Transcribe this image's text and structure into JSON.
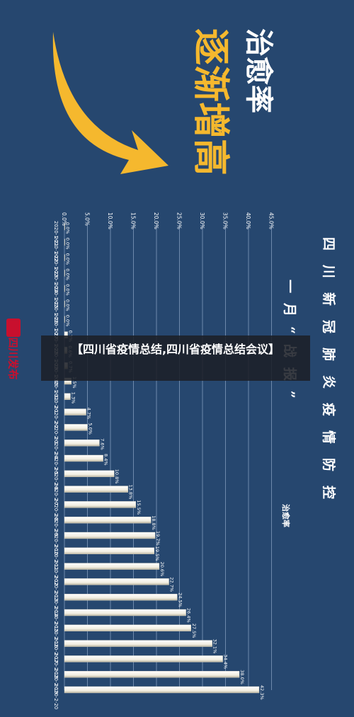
{
  "headline": "【四川省疫情总结,四川省疫情总结会议】",
  "brand": {
    "text": "四川发布",
    "color": "#c8102e"
  },
  "banner": {
    "line1": "治愈率",
    "line2": "逐渐增高"
  },
  "colors": {
    "background": "#26476f",
    "bar": "#f4f1e4",
    "bar_shade": "#bdb7a3",
    "arrow": "#f5b82e",
    "grid": "#8fa6c6"
  },
  "chart_data": {
    "type": "bar",
    "orientation": "horizontal",
    "title": "四川新冠肺炎疫情防控",
    "subtitle": "一月“战报”",
    "legend": "治愈率",
    "categories": [
      "2020-1-21",
      "2020-1-22",
      "2020-1-23",
      "2020-1-24",
      "2020-1-25",
      "2020-1-26",
      "2020-1-27",
      "2020-1-28",
      "2020-1-29",
      "2020-1-30",
      "2020-1-31",
      "2020-2-1",
      "2020-2-2",
      "2020-2-3",
      "2020-2-4",
      "2020-2-5",
      "2020-2-6",
      "2020-2-7",
      "2020-2-8",
      "2020-2-9",
      "2020-2-10",
      "2020-2-11",
      "2020-2-12",
      "2020-2-13",
      "2020-2-14",
      "2020-2-15",
      "2020-2-16",
      "2020-2-17",
      "2020-2-18",
      "2020-2-19",
      "2020-2-20"
    ],
    "values": [
      0,
      0,
      0,
      0,
      0,
      0,
      0,
      0.7,
      0.6,
      0.7,
      1.5,
      1.3,
      4.7,
      5.0,
      7.6,
      8.4,
      10.8,
      13.8,
      15.5,
      18.8,
      19.7,
      19.5,
      20.6,
      22.7,
      24.5,
      26.4,
      27.5,
      32.1,
      34.4,
      38.0,
      42.3
    ],
    "labels": [
      "0.0%",
      "0.0%",
      "0.0%",
      "0.0%",
      "0.0%",
      "0.0%",
      "0.0%",
      "0.7%",
      "0.6%",
      "0.7%",
      "1.5%",
      "1.3%",
      "4.7%",
      "5.0%",
      "7.6%",
      "8.4%",
      "10.8%",
      "13.8%",
      "15.5%",
      "18.8%",
      "19.7%",
      "19.5%",
      "20.6%",
      "22.7%",
      "24.5%",
      "26.4%",
      "27.5%",
      "32.1%",
      "34.4%",
      "38.0%",
      "42.3%"
    ],
    "ticks": [
      "0.0%",
      "5.0%",
      "10.0%",
      "15.0%",
      "20.0%",
      "25.0%",
      "30.0%",
      "35.0%",
      "40.0%",
      "45.0%"
    ],
    "xlim": [
      0,
      45
    ],
    "grid": true
  }
}
